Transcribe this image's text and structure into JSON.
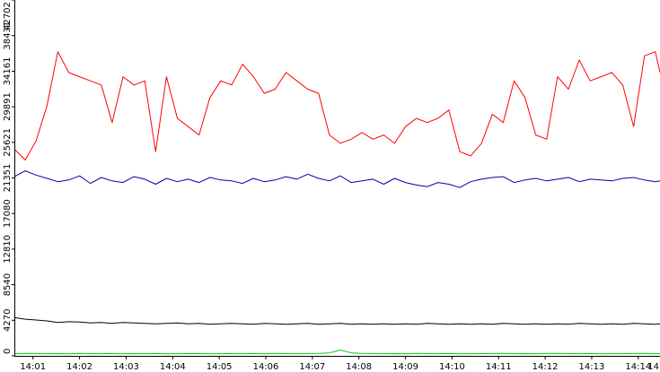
{
  "chart_data": {
    "type": "line",
    "title": "",
    "xlabel": "",
    "ylabel": "",
    "ylim": [
      0,
      42702
    ],
    "xlim": [
      "14:00:36",
      "14:14:28"
    ],
    "grid": false,
    "legend": "none",
    "y_ticks": [
      0,
      4270,
      8540,
      12810,
      17080,
      21351,
      25621,
      29891,
      34161,
      38431,
      42702
    ],
    "x_ticks": [
      "14:01",
      "14:02",
      "14:03",
      "14:04",
      "14:05",
      "14:06",
      "14:07",
      "14:08",
      "14:09",
      "14:10",
      "14:11",
      "14:12",
      "14:13",
      "14:14",
      "14"
    ],
    "x": [
      "14:00:36",
      "14:00:50",
      "14:01:04",
      "14:01:18",
      "14:01:32",
      "14:01:46",
      "14:02:00",
      "14:02:14",
      "14:02:28",
      "14:02:42",
      "14:02:56",
      "14:03:10",
      "14:03:24",
      "14:03:38",
      "14:03:52",
      "14:04:06",
      "14:04:20",
      "14:04:34",
      "14:04:48",
      "14:05:02",
      "14:05:16",
      "14:05:30",
      "14:05:44",
      "14:05:58",
      "14:06:12",
      "14:06:26",
      "14:06:40",
      "14:06:54",
      "14:07:08",
      "14:07:22",
      "14:07:36",
      "14:07:50",
      "14:08:04",
      "14:08:18",
      "14:08:32",
      "14:08:46",
      "14:09:00",
      "14:09:14",
      "14:09:28",
      "14:09:42",
      "14:09:56",
      "14:10:10",
      "14:10:24",
      "14:10:38",
      "14:10:52",
      "14:11:06",
      "14:11:20",
      "14:11:34",
      "14:11:48",
      "14:12:02",
      "14:12:16",
      "14:12:30",
      "14:12:44",
      "14:12:58",
      "14:13:12",
      "14:13:26",
      "14:13:40",
      "14:13:54",
      "14:14:08",
      "14:14:22",
      "14:14:28"
    ],
    "series": [
      {
        "color": "#ff0000",
        "values": [
          24800,
          23500,
          25800,
          30000,
          36500,
          34000,
          33500,
          33000,
          32500,
          28000,
          33500,
          32500,
          33000,
          24500,
          33500,
          28500,
          27500,
          26500,
          31000,
          33000,
          32500,
          35000,
          33500,
          31500,
          32000,
          34000,
          33000,
          32000,
          31500,
          26500,
          25500,
          26000,
          26800,
          26000,
          26500,
          25500,
          27500,
          28500,
          28000,
          28500,
          29500,
          24500,
          24000,
          25500,
          29000,
          28000,
          33000,
          31000,
          26500,
          26000,
          33500,
          32000,
          35500,
          33000,
          33500,
          34000,
          32500,
          27500,
          36000,
          36500,
          34000
        ]
      },
      {
        "color": "#0000aa",
        "values": [
          21500,
          22200,
          21700,
          21300,
          20900,
          21100,
          21600,
          20700,
          21400,
          21000,
          20800,
          21500,
          21200,
          20600,
          21300,
          20900,
          21200,
          20800,
          21400,
          21100,
          21000,
          20700,
          21300,
          20900,
          21100,
          21500,
          21200,
          21800,
          21300,
          21000,
          21600,
          20800,
          21000,
          21200,
          20600,
          21300,
          20800,
          20500,
          20300,
          20800,
          20600,
          20200,
          20900,
          21200,
          21400,
          21500,
          20800,
          21100,
          21300,
          21000,
          21200,
          21400,
          20900,
          21200,
          21100,
          21000,
          21300,
          21400,
          21100,
          20900,
          21000
        ]
      },
      {
        "color": "#000000",
        "values": [
          4600,
          4400,
          4300,
          4200,
          4000,
          4100,
          4050,
          3950,
          4000,
          3900,
          4000,
          3950,
          3900,
          3850,
          3900,
          3950,
          3850,
          3900,
          3800,
          3850,
          3900,
          3850,
          3800,
          3900,
          3850,
          3800,
          3850,
          3900,
          3800,
          3850,
          3900,
          3800,
          3850,
          3800,
          3850,
          3800,
          3850,
          3800,
          3900,
          3850,
          3800,
          3850,
          3800,
          3850,
          3800,
          3900,
          3850,
          3800,
          3850,
          3800,
          3850,
          3800,
          3900,
          3850,
          3800,
          3850,
          3800,
          3900,
          3850,
          3800,
          3850
        ]
      },
      {
        "color": "#00cc00",
        "values": [
          250,
          300,
          280,
          260,
          270,
          250,
          300,
          270,
          260,
          280,
          250,
          270,
          260,
          280,
          250,
          260,
          270,
          280,
          250,
          260,
          270,
          260,
          280,
          250,
          300,
          270,
          260,
          280,
          300,
          350,
          700,
          350,
          300,
          280,
          260,
          270,
          250,
          300,
          270,
          260,
          280,
          250,
          260,
          270,
          280,
          300,
          260,
          270,
          250,
          280,
          300,
          270,
          260,
          280,
          250,
          260,
          270,
          280,
          300,
          260,
          270
        ]
      }
    ]
  }
}
